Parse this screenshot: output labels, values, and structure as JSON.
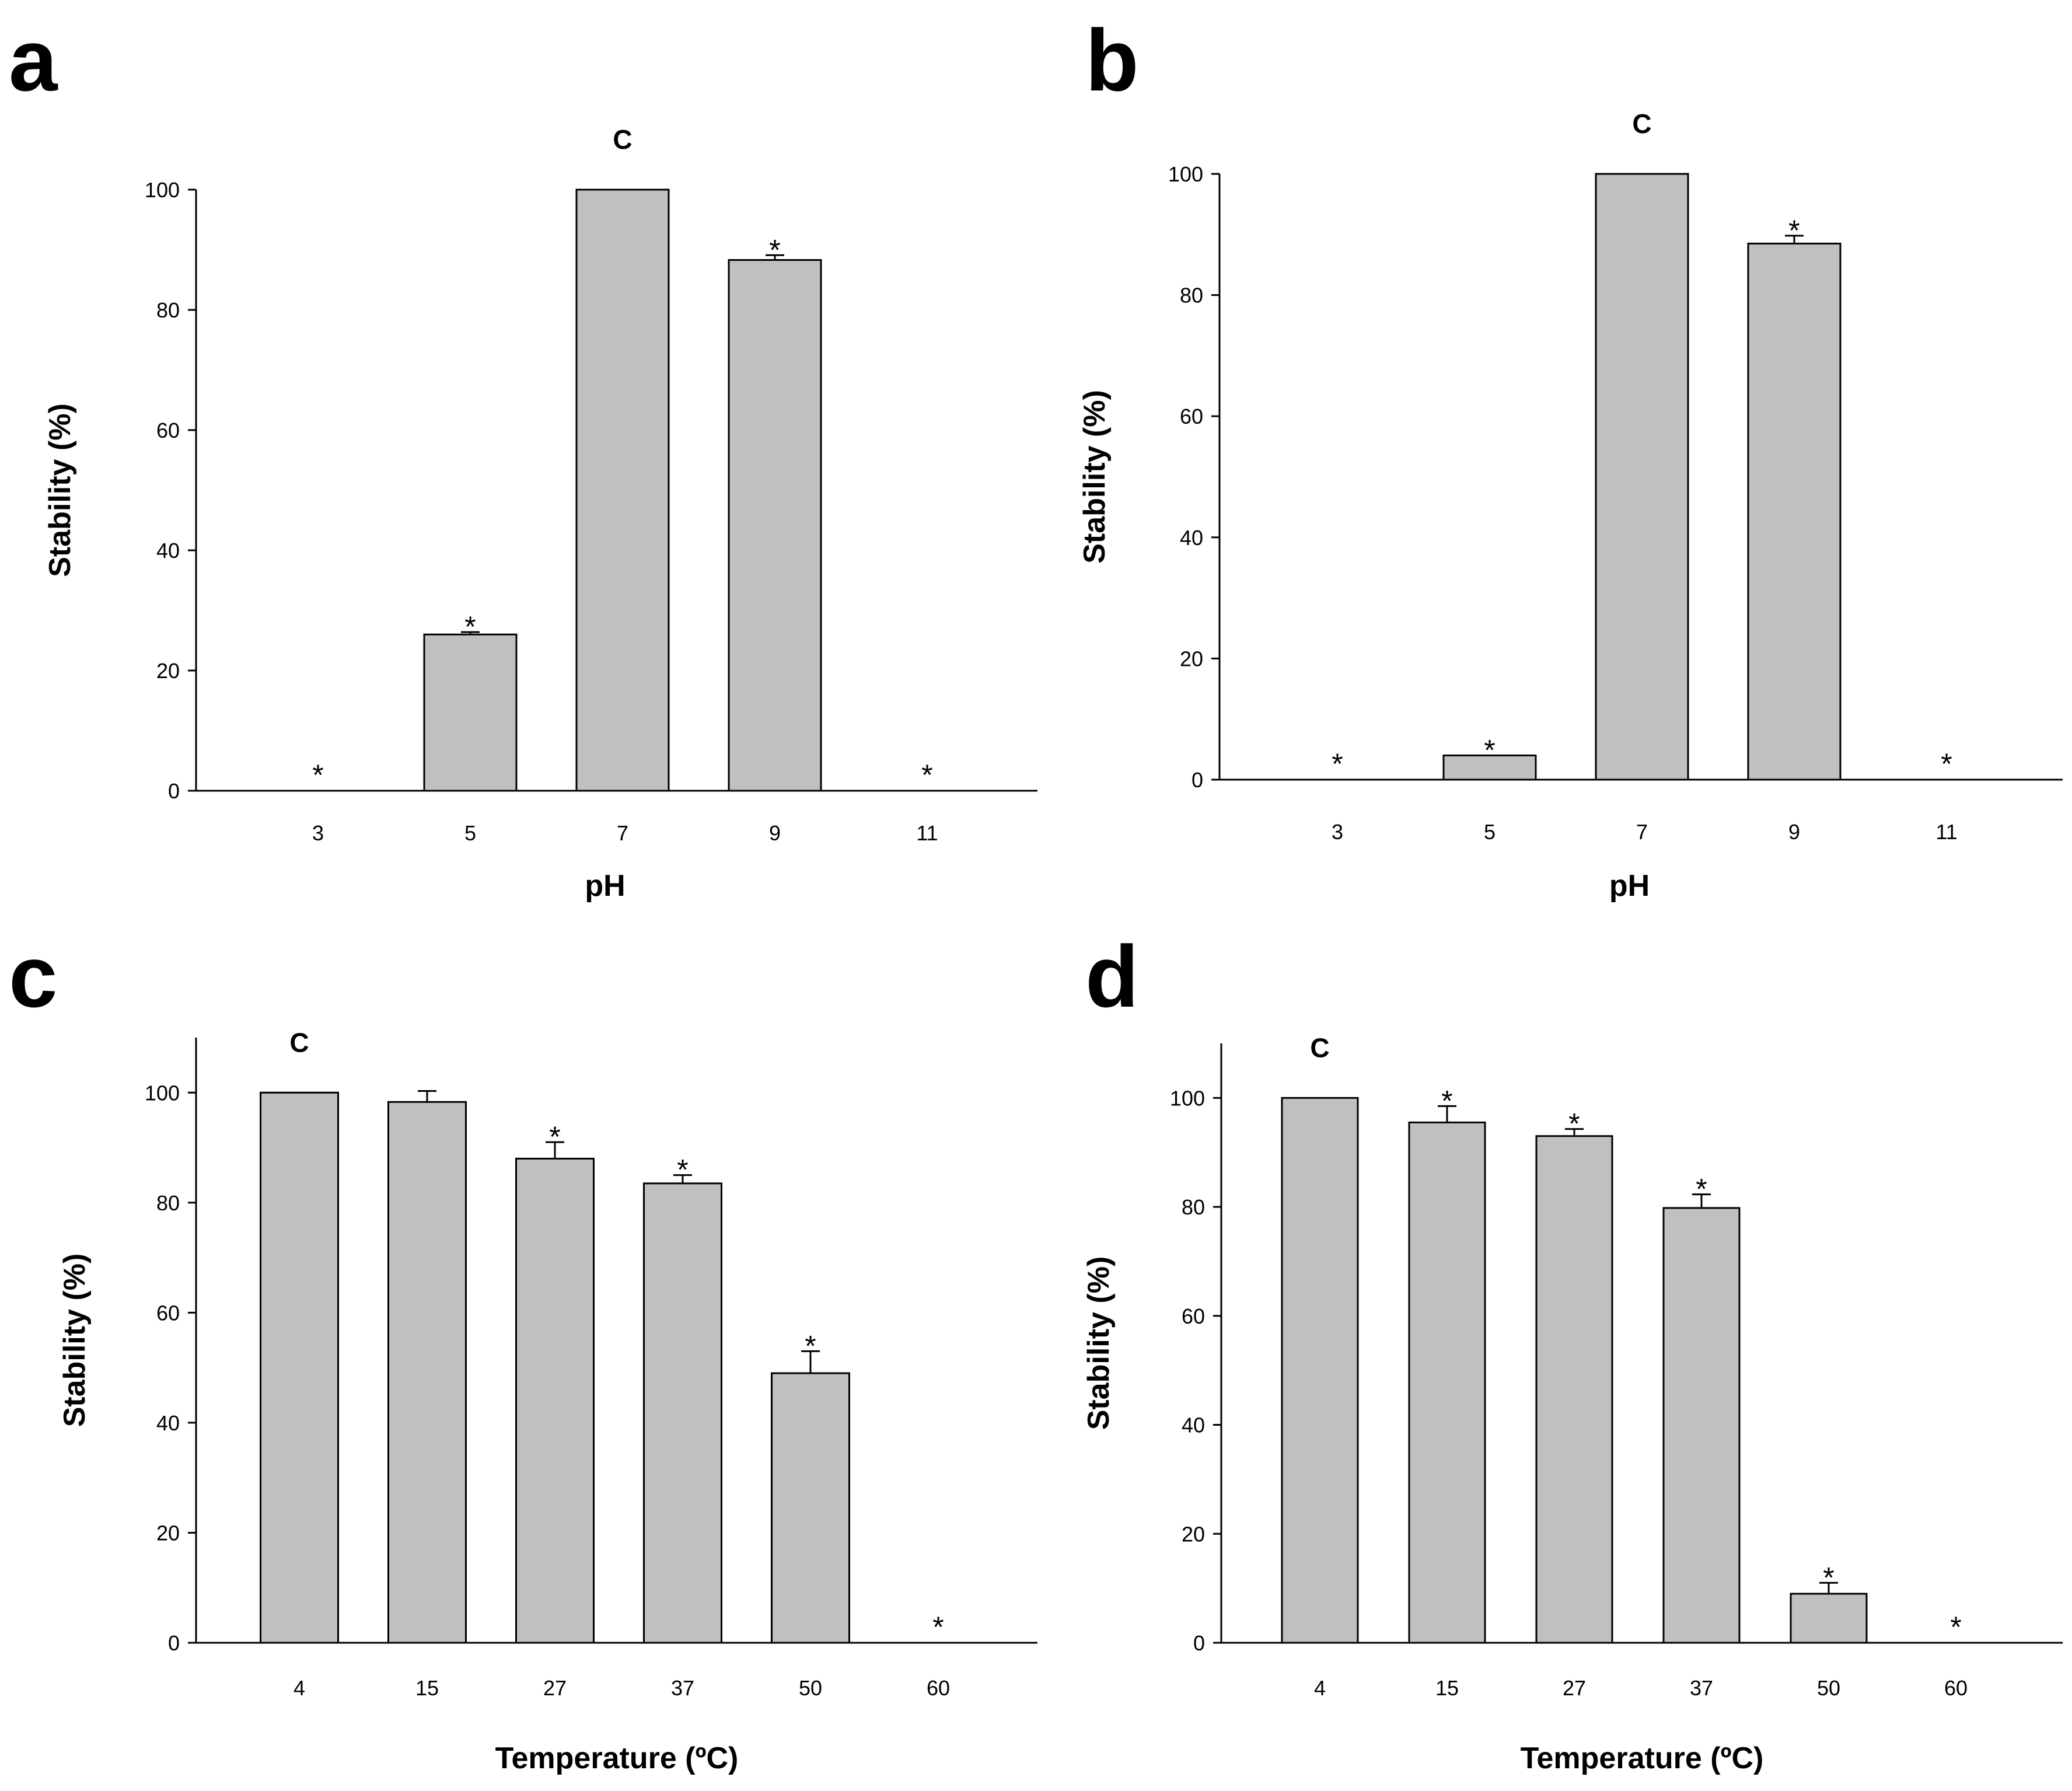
{
  "chart_data": [
    {
      "panel": "a",
      "type": "bar",
      "xlabel": "pH",
      "ylabel": "Stability (%)",
      "categories": [
        "3",
        "5",
        "7",
        "9",
        "11"
      ],
      "values": [
        0,
        26,
        100,
        88.3,
        0
      ],
      "errors": [
        0,
        0.4,
        0,
        0.8,
        0
      ],
      "annotations": [
        "*",
        "*",
        "C",
        "*",
        "*"
      ],
      "ylim": [
        0,
        100
      ],
      "yticks": [
        0,
        20,
        40,
        60,
        80,
        100
      ],
      "ytick_labels": [
        "0",
        "20",
        "40",
        "60",
        "80",
        "100"
      ]
    },
    {
      "panel": "b",
      "type": "bar",
      "xlabel": "pH",
      "ylabel": "Stability (%)",
      "categories": [
        "3",
        "5",
        "7",
        "9",
        "11"
      ],
      "values": [
        0,
        4,
        100,
        88.5,
        0
      ],
      "errors": [
        0,
        0,
        0,
        1.3,
        0
      ],
      "annotations": [
        "*",
        "*",
        "C",
        "*",
        "*"
      ],
      "ylim": [
        0,
        100
      ],
      "yticks": [
        0,
        20,
        40,
        60,
        80,
        100
      ],
      "ytick_labels": [
        "0",
        "20",
        "40",
        "60",
        "80",
        "100"
      ]
    },
    {
      "panel": "c",
      "type": "bar",
      "xlabel": "Temperature (ºC)",
      "ylabel": "Stability (%)",
      "categories": [
        "4",
        "15",
        "27",
        "37",
        "50",
        "60"
      ],
      "values": [
        100,
        98.3,
        88,
        83.5,
        49,
        0
      ],
      "errors": [
        0,
        2,
        3,
        1.5,
        4,
        0
      ],
      "annotations": [
        "C",
        "",
        "*",
        "*",
        "*",
        "*"
      ],
      "ylim": [
        0,
        110
      ],
      "yticks": [
        0,
        20,
        40,
        60,
        80,
        100
      ],
      "ytick_labels": [
        "0",
        "20",
        "40",
        "60",
        "80",
        "100"
      ]
    },
    {
      "panel": "d",
      "type": "bar",
      "xlabel": "Temperature (ºC)",
      "ylabel": "Stability (%)",
      "categories": [
        "4",
        "15",
        "27",
        "37",
        "50",
        "60"
      ],
      "values": [
        100,
        95.5,
        93,
        79.8,
        9,
        0
      ],
      "errors": [
        0,
        3,
        1.3,
        2.5,
        2,
        0
      ],
      "annotations": [
        "C",
        "*",
        "*",
        "*",
        "*",
        "*"
      ],
      "ylim": [
        0,
        110
      ],
      "yticks": [
        0,
        20,
        40,
        60,
        80,
        100
      ],
      "ytick_labels": [
        "0",
        "20",
        "40",
        "60",
        "80",
        "100"
      ]
    }
  ]
}
